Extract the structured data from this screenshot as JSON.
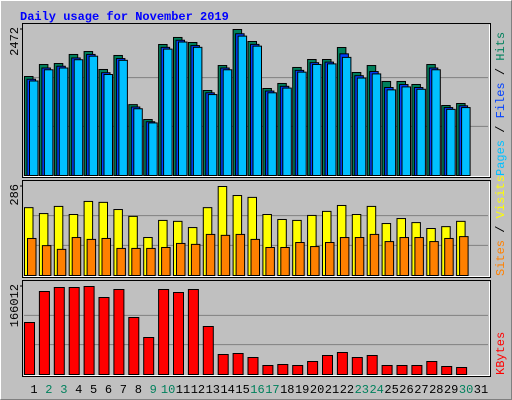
{
  "chart_data": {
    "type": "bar",
    "title": "Daily usage for November 2019",
    "categories": [
      "1",
      "2",
      "3",
      "4",
      "5",
      "6",
      "7",
      "8",
      "9",
      "10",
      "11",
      "12",
      "13",
      "14",
      "15",
      "16",
      "17",
      "18",
      "19",
      "20",
      "21",
      "22",
      "23",
      "24",
      "25",
      "26",
      "27",
      "28",
      "29",
      "30",
      "31"
    ],
    "category_colors": [
      "#000000",
      "#00805c",
      "#00805c",
      "#000000",
      "#000000",
      "#000000",
      "#000000",
      "#000000",
      "#00805c",
      "#00805c",
      "#000000",
      "#000000",
      "#000000",
      "#000000",
      "#000000",
      "#00805c",
      "#00805c",
      "#000000",
      "#000000",
      "#000000",
      "#000000",
      "#000000",
      "#00805c",
      "#00805c",
      "#000000",
      "#000000",
      "#000000",
      "#000000",
      "#000000",
      "#00805c",
      "#000000"
    ],
    "legend_separator": " / ",
    "panels": [
      {
        "ylim": [
          0,
          2472
        ],
        "yticks": [
          2472
        ],
        "grid_divisions": 3,
        "series": [
          {
            "name": "Pages",
            "color": "#00c0ff",
            "values": [
              1600,
              1790,
              1820,
              1960,
              2020,
              1710,
              1950,
              1130,
              890,
              2140,
              2260,
              2170,
              1370,
              1790,
              2360,
              2190,
              1400,
              1480,
              1750,
              1880,
              1890,
              2000,
              1650,
              1720,
              1450,
              1500,
              1460,
              1790,
              1120,
              1150,
              null
            ]
          },
          {
            "name": "Files",
            "color": "#0040ff",
            "values": [
              1630,
              1820,
              1850,
              1990,
              2050,
              1740,
              1980,
              1160,
              910,
              2170,
              2290,
              2200,
              1400,
              1820,
              2400,
              2220,
              1430,
              1510,
              1780,
              1910,
              1920,
              2060,
              1690,
              1760,
              1490,
              1540,
              1490,
              1820,
              1150,
              1180,
              null
            ]
          },
          {
            "name": "Hits",
            "color": "#00805c",
            "values": [
              1676,
              1879,
              1896,
              2049,
              2099,
              1795,
              2032,
              1200,
              948,
              2218,
              2337,
              2252,
              1439,
              1862,
              2472,
              2269,
              1473,
              1558,
              1829,
              1964,
              1964,
              2167,
              1744,
              1862,
              1592,
              1592,
              1541,
              1879,
              1185,
              1219,
              null
            ]
          }
        ]
      },
      {
        "ylim": [
          0,
          286
        ],
        "yticks": [
          286
        ],
        "grid_divisions": 3,
        "series": [
          {
            "name": "Sites",
            "color": "#ff8000",
            "values": [
              119,
              96,
              84,
              122,
              116,
              119,
              87,
              87,
              87,
              90,
              103,
              100,
              132,
              129,
              132,
              116,
              90,
              90,
              106,
              93,
              106,
              122,
              122,
              132,
              109,
              122,
              122,
              109,
              119,
              125,
              null
            ]
          },
          {
            "name": "Visits",
            "color": "#ffff00",
            "values": [
              218,
              199,
              222,
              196,
              238,
              235,
              212,
              190,
              122,
              177,
              174,
              154,
              218,
              286,
              257,
              251,
              196,
              180,
              177,
              193,
              206,
              225,
              196,
              222,
              167,
              183,
              170,
              151,
              157,
              174,
              null
            ]
          }
        ]
      },
      {
        "ylim": [
          0,
          166012
        ],
        "yticks": [
          166012
        ],
        "grid_divisions": 3,
        "series": [
          {
            "name": "KBytes",
            "color": "#ff0000",
            "values": [
              98098,
              156580,
              164126,
              164126,
              166012,
              145260,
              160351,
              107532,
              69800,
              160351,
              154693,
              160351,
              90552,
              37730,
              39616,
              32071,
              16978,
              18865,
              16978,
              24524,
              35843,
              41503,
              32071,
              35843,
              16978,
              16978,
              16978,
              24524,
              15092,
              13205,
              null
            ]
          }
        ]
      }
    ]
  }
}
